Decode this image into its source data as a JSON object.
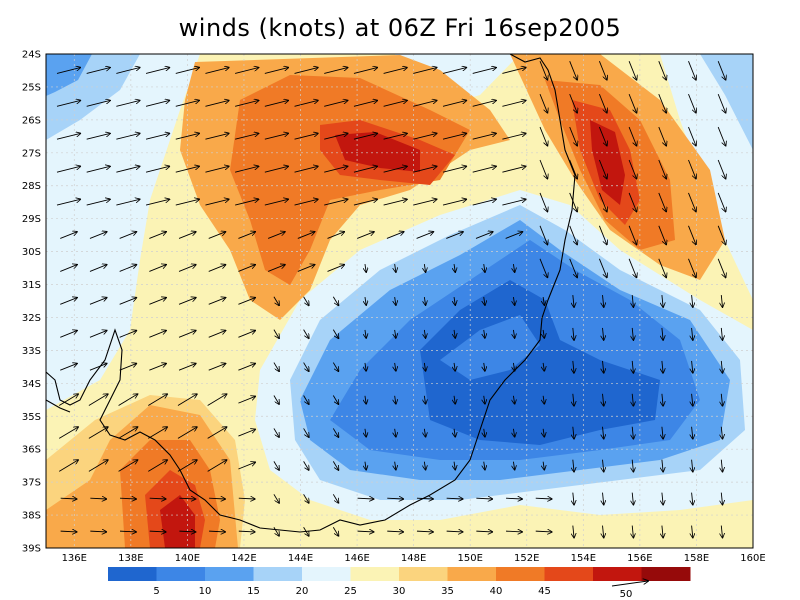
{
  "title": "winds (knots) at 06Z Fri 16sep2005",
  "map": {
    "lon_labels": [
      "136E",
      "138E",
      "140E",
      "142E",
      "144E",
      "146E",
      "148E",
      "150E",
      "152E",
      "154E",
      "156E",
      "158E",
      "160E"
    ],
    "lat_labels": [
      "24S",
      "25S",
      "26S",
      "27S",
      "28S",
      "29S",
      "30S",
      "31S",
      "32S",
      "33S",
      "34S",
      "35S",
      "36S",
      "37S",
      "38S",
      "39S"
    ],
    "lon_range": [
      135,
      160
    ],
    "lat_range": [
      -24,
      -39
    ],
    "grid": "dotted",
    "field": "wind speed (knots), shaded",
    "vectors": "wind direction arrows",
    "reference_vector_label": "50"
  },
  "colorbar": {
    "colors": [
      "#1f66cf",
      "#3d86e6",
      "#5aa2f0",
      "#a7d3f8",
      "#e4f5fd",
      "#fbf3b5",
      "#fbd47e",
      "#f9a94a",
      "#f07a26",
      "#e4481a",
      "#c2160e",
      "#960a0a"
    ],
    "labels": [
      "5",
      "10",
      "15",
      "20",
      "25",
      "30",
      "35",
      "40",
      "45"
    ]
  },
  "chart_data": {
    "type": "heatmap",
    "title": "winds (knots) at 06Z Fri 16sep2005",
    "x_ticks": [
      "136E",
      "138E",
      "140E",
      "142E",
      "144E",
      "146E",
      "148E",
      "150E",
      "152E",
      "154E",
      "156E",
      "158E",
      "160E"
    ],
    "y_ticks": [
      "24S",
      "25S",
      "26S",
      "27S",
      "28S",
      "29S",
      "30S",
      "31S",
      "32S",
      "33S",
      "34S",
      "35S",
      "36S",
      "37S",
      "38S",
      "39S"
    ],
    "xlim": [
      135,
      160
    ],
    "ylim": [
      -39,
      -24
    ],
    "legend_levels": [
      5,
      10,
      15,
      20,
      25,
      30,
      35,
      40,
      45
    ],
    "features": [
      {
        "lon": 146.5,
        "lat": -27.0,
        "value": 45
      },
      {
        "lon": 143.5,
        "lat": -28.5,
        "value": 38
      },
      {
        "lon": 155.0,
        "lat": -27.5,
        "value": 44
      },
      {
        "lon": 140.5,
        "lat": -38.5,
        "value": 48
      },
      {
        "lon": 139.5,
        "lat": -37.0,
        "value": 38
      },
      {
        "lon": 150.0,
        "lat": -32.5,
        "value": 6
      },
      {
        "lon": 152.0,
        "lat": -35.0,
        "value": 7
      },
      {
        "lon": 147.0,
        "lat": -33.5,
        "value": 12
      },
      {
        "lon": 135.5,
        "lat": -24.5,
        "value": 16
      },
      {
        "lon": 136.0,
        "lat": -31.0,
        "value": 28
      }
    ]
  }
}
